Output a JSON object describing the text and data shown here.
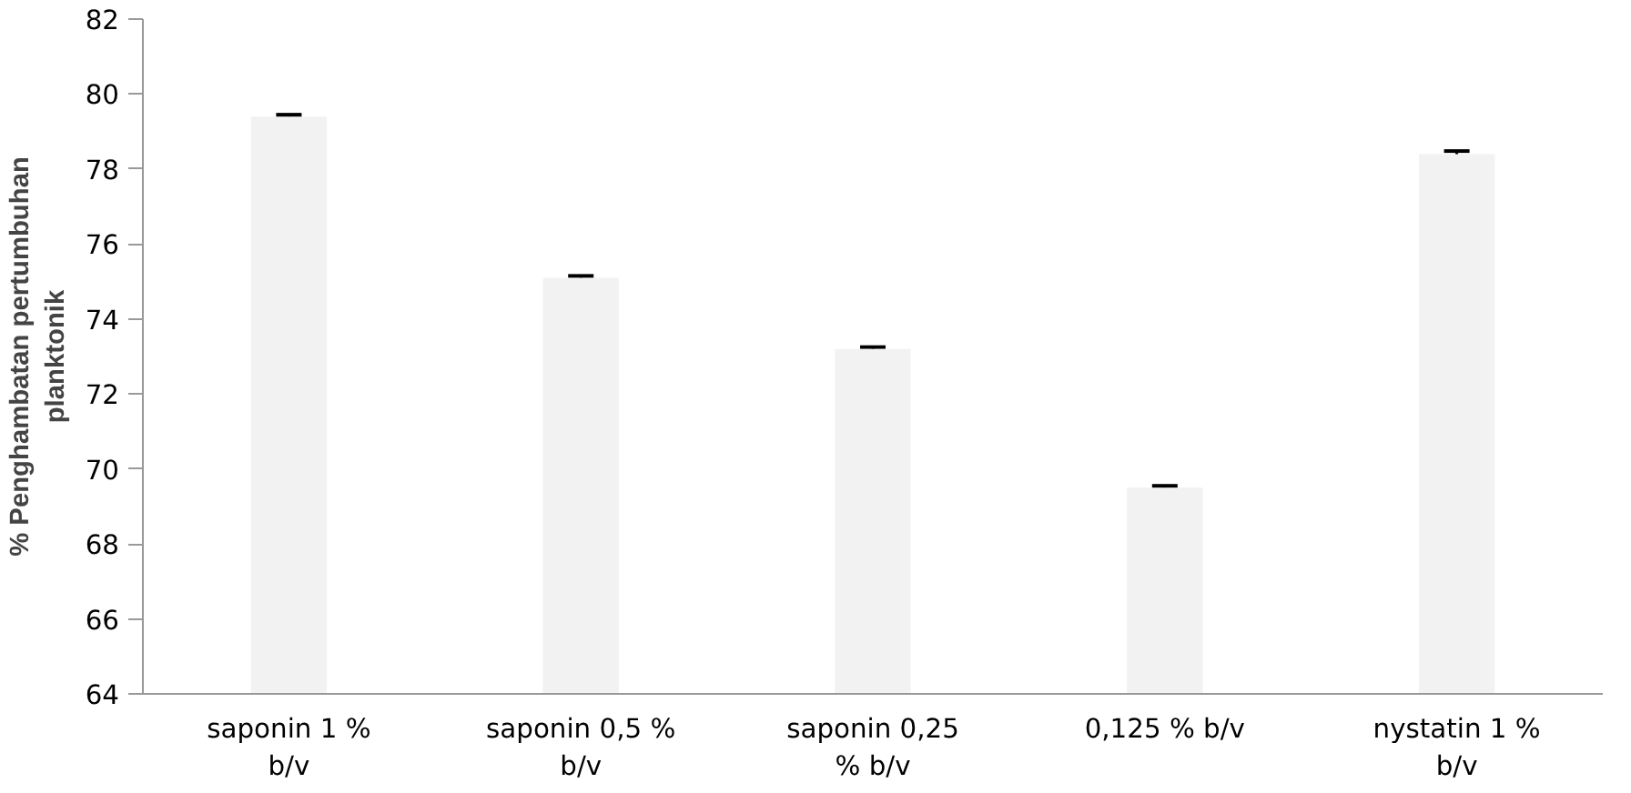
{
  "chart_data": {
    "type": "bar",
    "ylabel": "% Penghambatan pertumbuhan planktonik",
    "categories": [
      "saponin 1 % b/v",
      "saponin 0,5 % b/v",
      "saponin 0,25 % b/v",
      "0,125 % b/v",
      "nystatin 1 % b/v"
    ],
    "values": [
      79.4,
      75.1,
      73.2,
      69.5,
      78.4
    ],
    "errors": [
      0.05,
      0.05,
      0.05,
      0.05,
      0.08
    ],
    "color": "#f2f2f2",
    "ylim": [
      64,
      82
    ],
    "yticks": [
      64,
      66,
      68,
      70,
      72,
      74,
      76,
      78,
      80,
      82
    ],
    "grid": false
  }
}
